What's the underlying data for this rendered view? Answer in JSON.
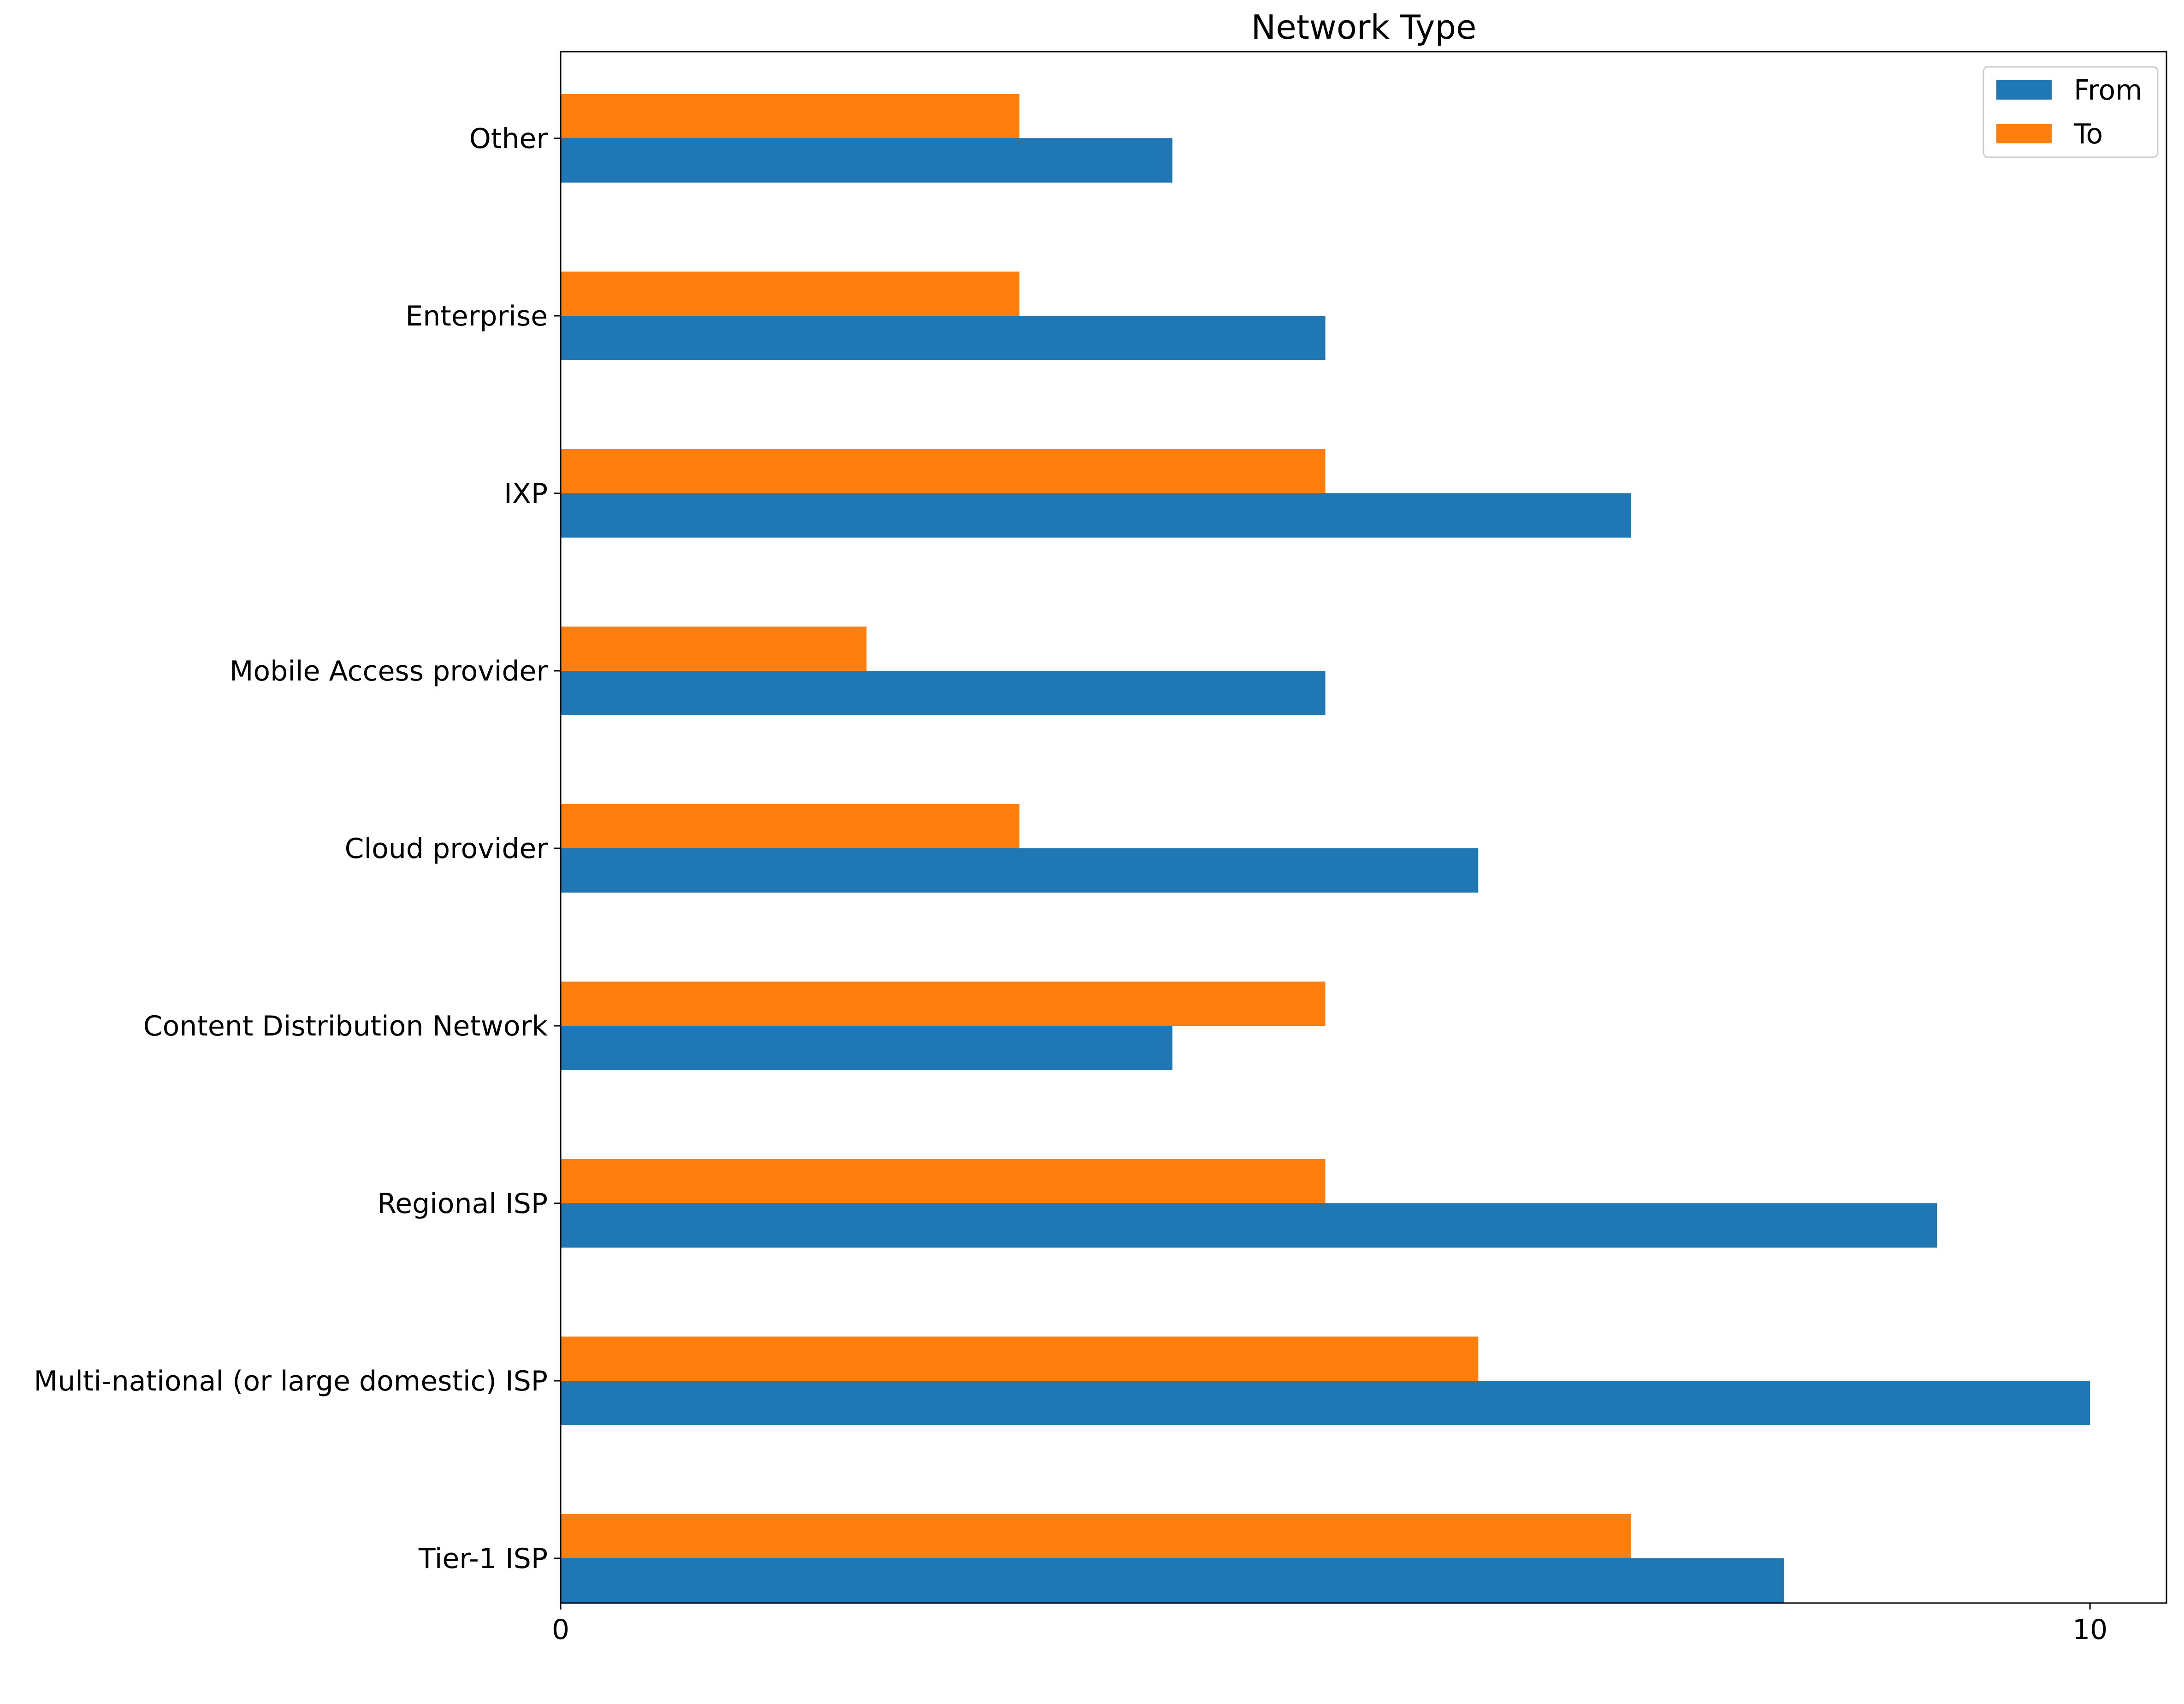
{
  "chart_data": {
    "type": "bar",
    "orientation": "horizontal",
    "title": "Network Type",
    "xlabel": "",
    "ylabel": "",
    "xlim": [
      0,
      10.5
    ],
    "x_ticks": [
      0,
      10
    ],
    "grid": false,
    "legend_position": "top-right",
    "categories": [
      "Tier-1 ISP",
      "Multi-national (or large domestic) ISP",
      "Regional ISP",
      "Content Distribution Network",
      "Cloud provider",
      "Mobile Access provider",
      "IXP",
      "Enterprise",
      "Other"
    ],
    "series": [
      {
        "name": "From",
        "color": "#1f77b4",
        "values": [
          8,
          10,
          9,
          4,
          6,
          5,
          7,
          5,
          4
        ]
      },
      {
        "name": "To",
        "color": "#ff7f0e",
        "values": [
          7,
          6,
          5,
          5,
          3,
          2,
          5,
          3,
          3
        ]
      }
    ]
  }
}
